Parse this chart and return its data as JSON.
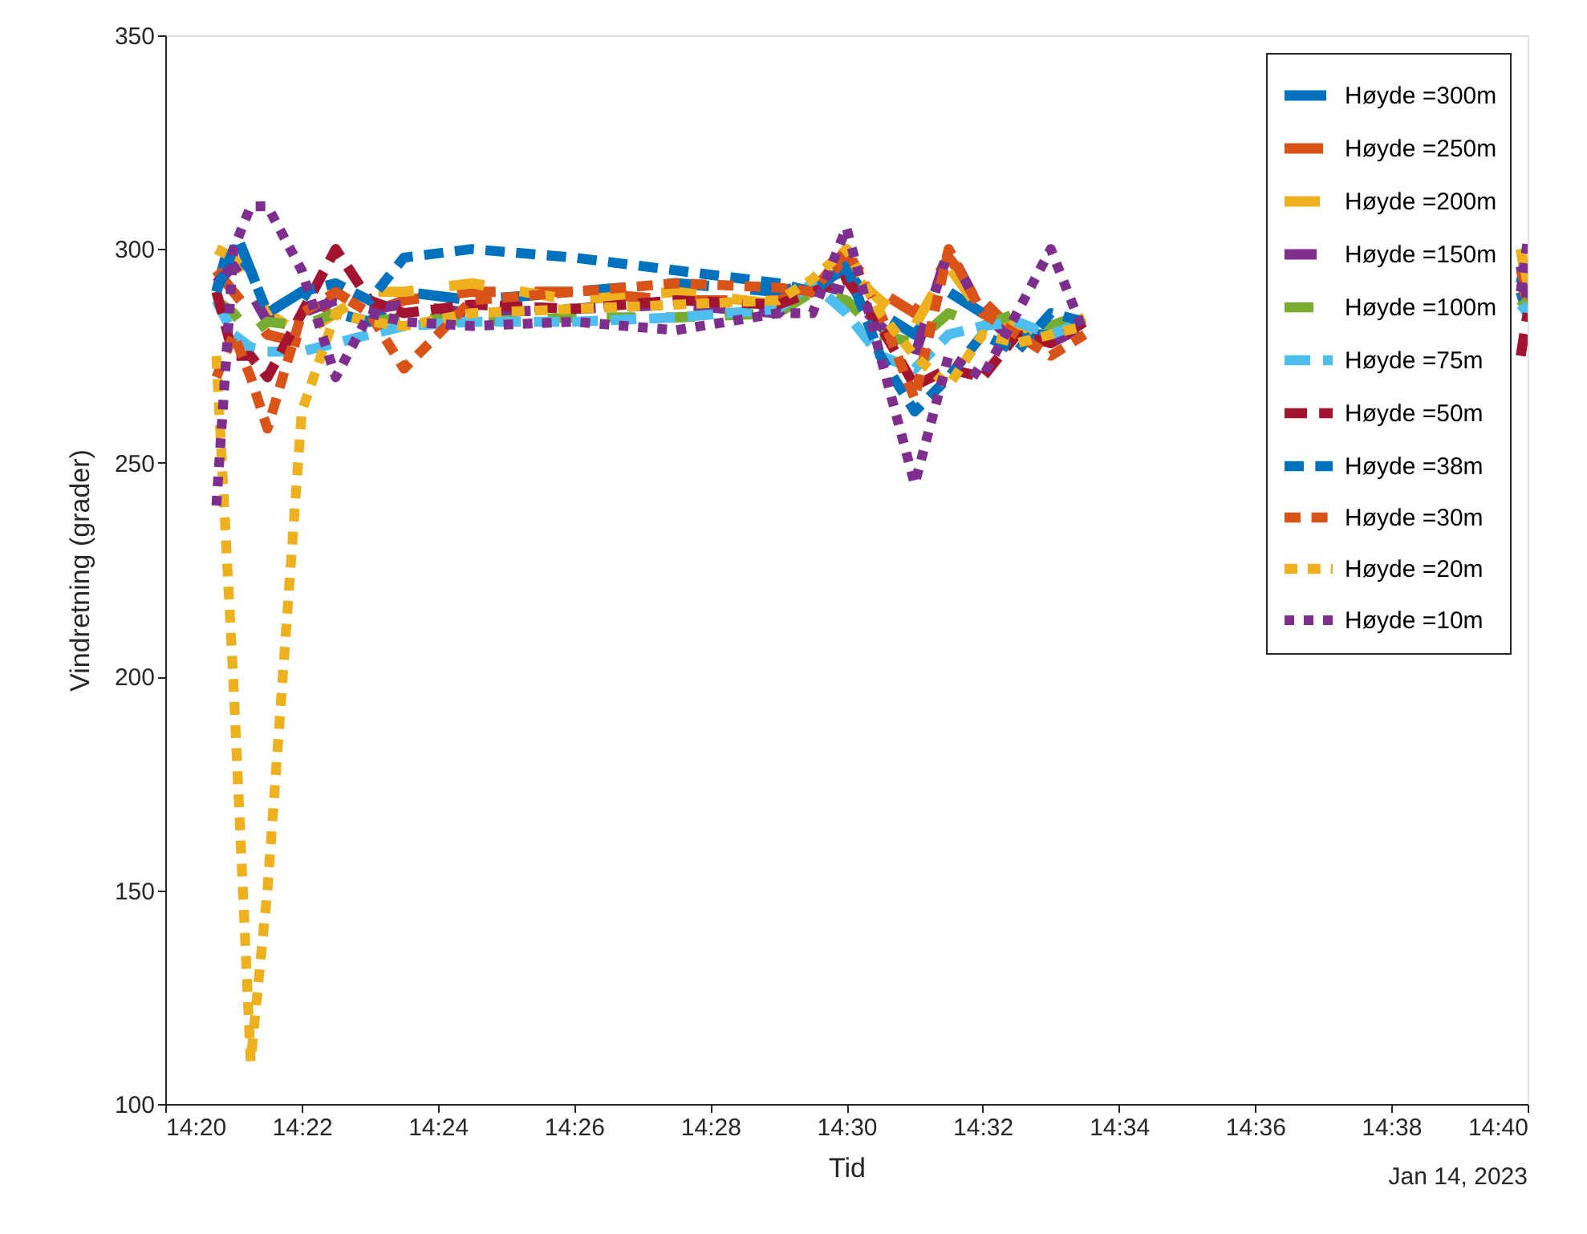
{
  "chart_data": {
    "type": "line",
    "xlabel": "Tid",
    "ylabel": "Vindretning (grader)",
    "annotations": [
      "Jan 14, 2023"
    ],
    "x": [
      14.3458,
      14.35,
      14.3542,
      14.3583,
      14.3667,
      14.375,
      14.3833,
      14.3917,
      14.4083,
      14.4333,
      14.4583,
      14.4833,
      14.4917,
      14.5,
      14.5083,
      14.5167,
      14.525,
      14.5333,
      14.5417,
      14.55,
      14.5583,
      14.6,
      14.665,
      14.6667
    ],
    "xlim": [
      14.3333,
      14.6667
    ],
    "xticks": [
      {
        "value": 14.3333,
        "label": "14:20"
      },
      {
        "value": 14.3667,
        "label": "14:22"
      },
      {
        "value": 14.4,
        "label": "14:24"
      },
      {
        "value": 14.4333,
        "label": "14:26"
      },
      {
        "value": 14.4667,
        "label": "14:28"
      },
      {
        "value": 14.5,
        "label": "14:30"
      },
      {
        "value": 14.5333,
        "label": "14:32"
      },
      {
        "value": 14.5667,
        "label": "14:34"
      },
      {
        "value": 14.6,
        "label": "14:36"
      },
      {
        "value": 14.6333,
        "label": "14:38"
      },
      {
        "value": 14.6667,
        "label": "14:40"
      }
    ],
    "ylim": [
      100,
      350
    ],
    "yticks": [
      100,
      150,
      200,
      250,
      300,
      350
    ],
    "grid": false,
    "legend": "top right",
    "marker": "none",
    "line_style": "dashed",
    "series": [
      {
        "name": "Høyde =300m",
        "color": "#0072bd",
        "values": [
          290,
          305,
          295,
          285,
          290,
          285,
          283,
          290,
          288,
          290,
          292,
          290,
          292,
          295,
          285,
          280,
          290,
          285,
          280,
          280,
          285,
          null,
          290,
          285
        ]
      },
      {
        "name": "Høyde =250m",
        "color": "#d95319",
        "values": [
          295,
          290,
          285,
          280,
          278,
          290,
          285,
          288,
          290,
          290,
          288,
          288,
          290,
          298,
          290,
          285,
          298,
          288,
          280,
          278,
          283,
          null,
          292,
          288
        ]
      },
      {
        "name": "Høyde =200m",
        "color": "#edb120",
        "values": [
          300,
          298,
          292,
          285,
          280,
          285,
          290,
          290,
          292,
          288,
          290,
          287,
          290,
          295,
          288,
          282,
          296,
          285,
          282,
          280,
          284,
          null,
          300,
          290
        ]
      },
      {
        "name": "Høyde =150m",
        "color": "#7e2f8e",
        "values": [
          292,
          296,
          290,
          283,
          285,
          288,
          286,
          287,
          285,
          286,
          287,
          285,
          292,
          290,
          282,
          275,
          300,
          285,
          278,
          278,
          282,
          null,
          296,
          288
        ]
      },
      {
        "name": "Høyde =100m",
        "color": "#77ac30",
        "values": [
          288,
          285,
          280,
          283,
          282,
          285,
          283,
          284,
          283,
          284,
          284,
          285,
          290,
          288,
          280,
          278,
          285,
          282,
          285,
          282,
          285,
          null,
          288,
          286
        ]
      },
      {
        "name": "Høyde =75m",
        "color": "#4dbeee",
        "values": [
          288,
          280,
          277,
          276,
          276,
          278,
          280,
          282,
          283,
          283,
          284,
          286,
          292,
          285,
          275,
          272,
          280,
          282,
          283,
          280,
          283,
          null,
          287,
          285
        ]
      },
      {
        "name": "Høyde =50m",
        "color": "#a2142f",
        "values": [
          290,
          275,
          275,
          270,
          285,
          300,
          288,
          285,
          287,
          286,
          288,
          287,
          290,
          293,
          282,
          268,
          272,
          270,
          280,
          278,
          283,
          null,
          275,
          285
        ]
      },
      {
        "name": "Høyde =38m",
        "color": "#0072bd",
        "values": [
          290,
          300,
          295,
          285,
          290,
          292,
          288,
          298,
          300,
          298,
          295,
          292,
          290,
          296,
          275,
          262,
          270,
          280,
          276,
          285,
          283,
          null,
          292,
          300
        ]
      },
      {
        "name": "Høyde =30m",
        "color": "#d95319",
        "values": [
          270,
          280,
          270,
          258,
          285,
          290,
          285,
          272,
          288,
          290,
          292,
          291,
          290,
          300,
          285,
          265,
          300,
          285,
          280,
          275,
          280,
          null,
          295,
          290
        ]
      },
      {
        "name": "Høyde =20m",
        "color": "#edb120",
        "values": [
          275,
          198,
          110,
          150,
          262,
          285,
          283,
          282,
          285,
          286,
          287,
          288,
          293,
          300,
          285,
          275,
          268,
          280,
          278,
          280,
          282,
          null,
          300,
          292
        ]
      },
      {
        "name": "Høyde =10m",
        "color": "#7e2f8e",
        "values": [
          240,
          300,
          310,
          310,
          295,
          270,
          285,
          283,
          282,
          283,
          281,
          285,
          285,
          305,
          275,
          245,
          275,
          270,
          285,
          300,
          280,
          null,
          290,
          302
        ]
      }
    ]
  }
}
